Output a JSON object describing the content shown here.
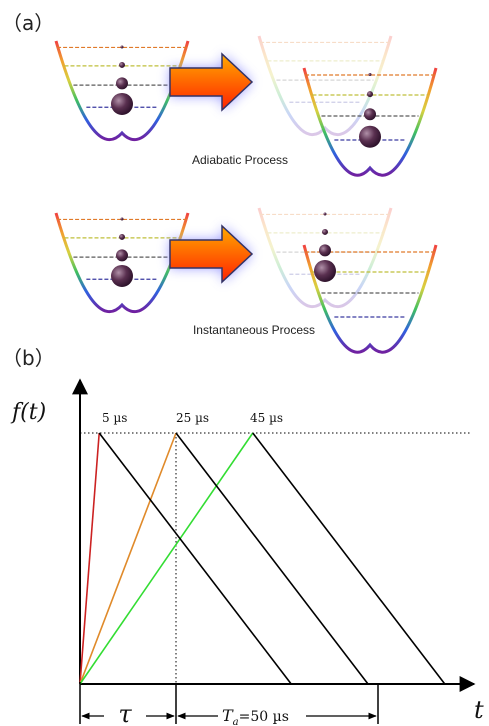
{
  "panel_a": {
    "label": "（a）",
    "captions": [
      "Adiabatic Process",
      "Instantaneous Process"
    ],
    "level_colors": [
      "#e07a2a",
      "#bfbf3a",
      "#5a5a5a",
      "#3a3aa0"
    ],
    "arrow_colors": {
      "top": "#ff9900",
      "bottom": "#ff2200",
      "outline": "#333366",
      "glow": "#7070ff"
    }
  },
  "panel_b": {
    "label": "（b）",
    "y_axis_label": "f(t)",
    "x_axis_label": "t",
    "peak_labels": [
      "5 µs",
      "25 µs",
      "45 µs"
    ],
    "tau_label": "τ",
    "ta_label": "T",
    "ta_subscript": "a",
    "ta_value": "=50 µs"
  },
  "chart_data": {
    "type": "line",
    "xlabel": "t",
    "ylabel": "f(t)",
    "xlim": [
      0,
      100
    ],
    "ylim": [
      0,
      1
    ],
    "series": [
      {
        "color": "#cc2222",
        "x": [
          0,
          5
        ],
        "y": [
          0,
          1
        ]
      },
      {
        "color": "#e08a2a",
        "x": [
          0,
          25
        ],
        "y": [
          0,
          1
        ]
      },
      {
        "color": "#33dd33",
        "x": [
          0,
          45
        ],
        "y": [
          0,
          1
        ]
      },
      {
        "color": "#000000",
        "x": [
          5,
          55
        ],
        "y": [
          1,
          0
        ]
      },
      {
        "color": "#000000",
        "x": [
          25,
          75
        ],
        "y": [
          1,
          0
        ]
      },
      {
        "color": "#000000",
        "x": [
          45,
          95
        ],
        "y": [
          1,
          0
        ]
      }
    ],
    "reference_line": {
      "y": 1,
      "style": "dotted"
    },
    "annotations": [
      "5 µs",
      "25 µs",
      "45 µs",
      "τ",
      "Ta=50 µs"
    ]
  }
}
